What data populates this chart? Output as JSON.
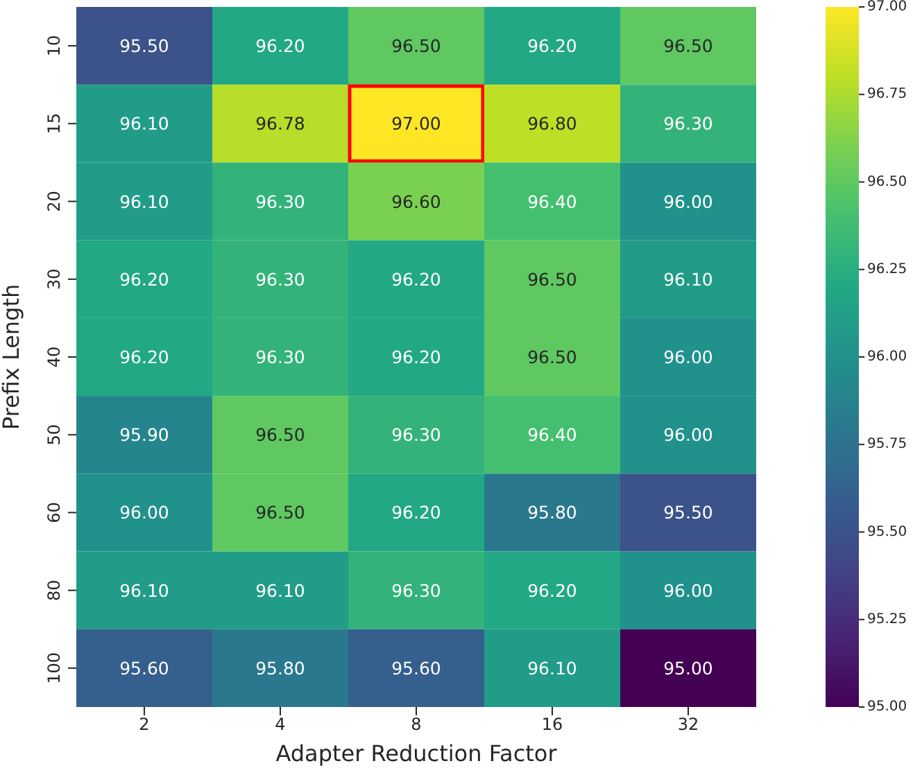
{
  "chart_data": {
    "type": "heatmap",
    "xlabel": "Adapter Reduction Factor",
    "ylabel": "Prefix Length",
    "categories": [
      "2",
      "4",
      "8",
      "16",
      "32"
    ],
    "y_categories": [
      "10",
      "15",
      "20",
      "30",
      "40",
      "50",
      "60",
      "80",
      "100"
    ],
    "cells": [
      [
        95.5,
        96.2,
        96.5,
        96.2,
        96.5
      ],
      [
        96.1,
        96.78,
        97.0,
        96.8,
        96.3
      ],
      [
        96.1,
        96.3,
        96.6,
        96.4,
        96.0
      ],
      [
        96.2,
        96.3,
        96.2,
        96.5,
        96.1
      ],
      [
        96.2,
        96.3,
        96.2,
        96.5,
        96.0
      ],
      [
        95.9,
        96.5,
        96.3,
        96.4,
        96.0
      ],
      [
        96.0,
        96.5,
        96.2,
        95.8,
        95.5
      ],
      [
        96.1,
        96.1,
        96.3,
        96.2,
        96.0
      ],
      [
        95.6,
        95.8,
        95.6,
        96.1,
        95.0
      ]
    ],
    "cell_labels": [
      [
        "95.50",
        "96.20",
        "96.50",
        "96.20",
        "96.50"
      ],
      [
        "96.10",
        "96.78",
        "97.00",
        "96.80",
        "96.30"
      ],
      [
        "96.10",
        "96.30",
        "96.60",
        "96.40",
        "96.00"
      ],
      [
        "96.20",
        "96.30",
        "96.20",
        "96.50",
        "96.10"
      ],
      [
        "96.20",
        "96.30",
        "96.20",
        "96.50",
        "96.00"
      ],
      [
        "95.90",
        "96.50",
        "96.30",
        "96.40",
        "96.00"
      ],
      [
        "96.00",
        "96.50",
        "96.20",
        "95.80",
        "95.50"
      ],
      [
        "96.10",
        "96.10",
        "96.30",
        "96.20",
        "96.00"
      ],
      [
        "95.60",
        "95.80",
        "95.60",
        "96.10",
        "95.00"
      ]
    ],
    "clim": [
      95.0,
      97.0
    ],
    "cticks": [
      {
        "value": 95.0,
        "label": "95.00"
      },
      {
        "value": 95.25,
        "label": "95.25"
      },
      {
        "value": 95.5,
        "label": "95.50"
      },
      {
        "value": 95.75,
        "label": "95.75"
      },
      {
        "value": 96.0,
        "label": "96.00"
      },
      {
        "value": 96.25,
        "label": "96.25"
      },
      {
        "value": 96.5,
        "label": "96.50"
      },
      {
        "value": 96.75,
        "label": "96.75"
      },
      {
        "value": 97.0,
        "label": "97.00"
      }
    ]
  }
}
